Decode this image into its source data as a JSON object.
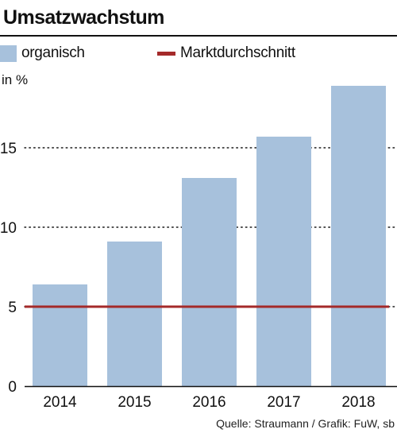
{
  "title": "Umsatzwachstum",
  "legend": {
    "organic_label": "organisch",
    "market_label": "Marktdurchschnitt"
  },
  "unit_label": "in %",
  "source": "Quelle: Straumann / Grafik: FuW, sb",
  "colors": {
    "bar": "#a7c1dc",
    "average_line": "#a42a2a",
    "gridline": "#1a1a1a",
    "axis": "#111111",
    "text": "#111111"
  },
  "chart_data": {
    "type": "bar",
    "title": "Umsatzwachstum",
    "xlabel": "",
    "ylabel": "in %",
    "categories": [
      "2014",
      "2015",
      "2016",
      "2017",
      "2018"
    ],
    "series": [
      {
        "name": "organisch",
        "type": "bar",
        "values": [
          6.4,
          9.1,
          13.1,
          15.7,
          18.9
        ]
      },
      {
        "name": "Marktdurchschnitt",
        "type": "line",
        "values": [
          5,
          5,
          5,
          5,
          5
        ]
      }
    ],
    "yticks": [
      0,
      5,
      10,
      15
    ],
    "ylim": [
      0,
      19.6
    ],
    "grid": "horizontal dotted",
    "legend_position": "top"
  }
}
